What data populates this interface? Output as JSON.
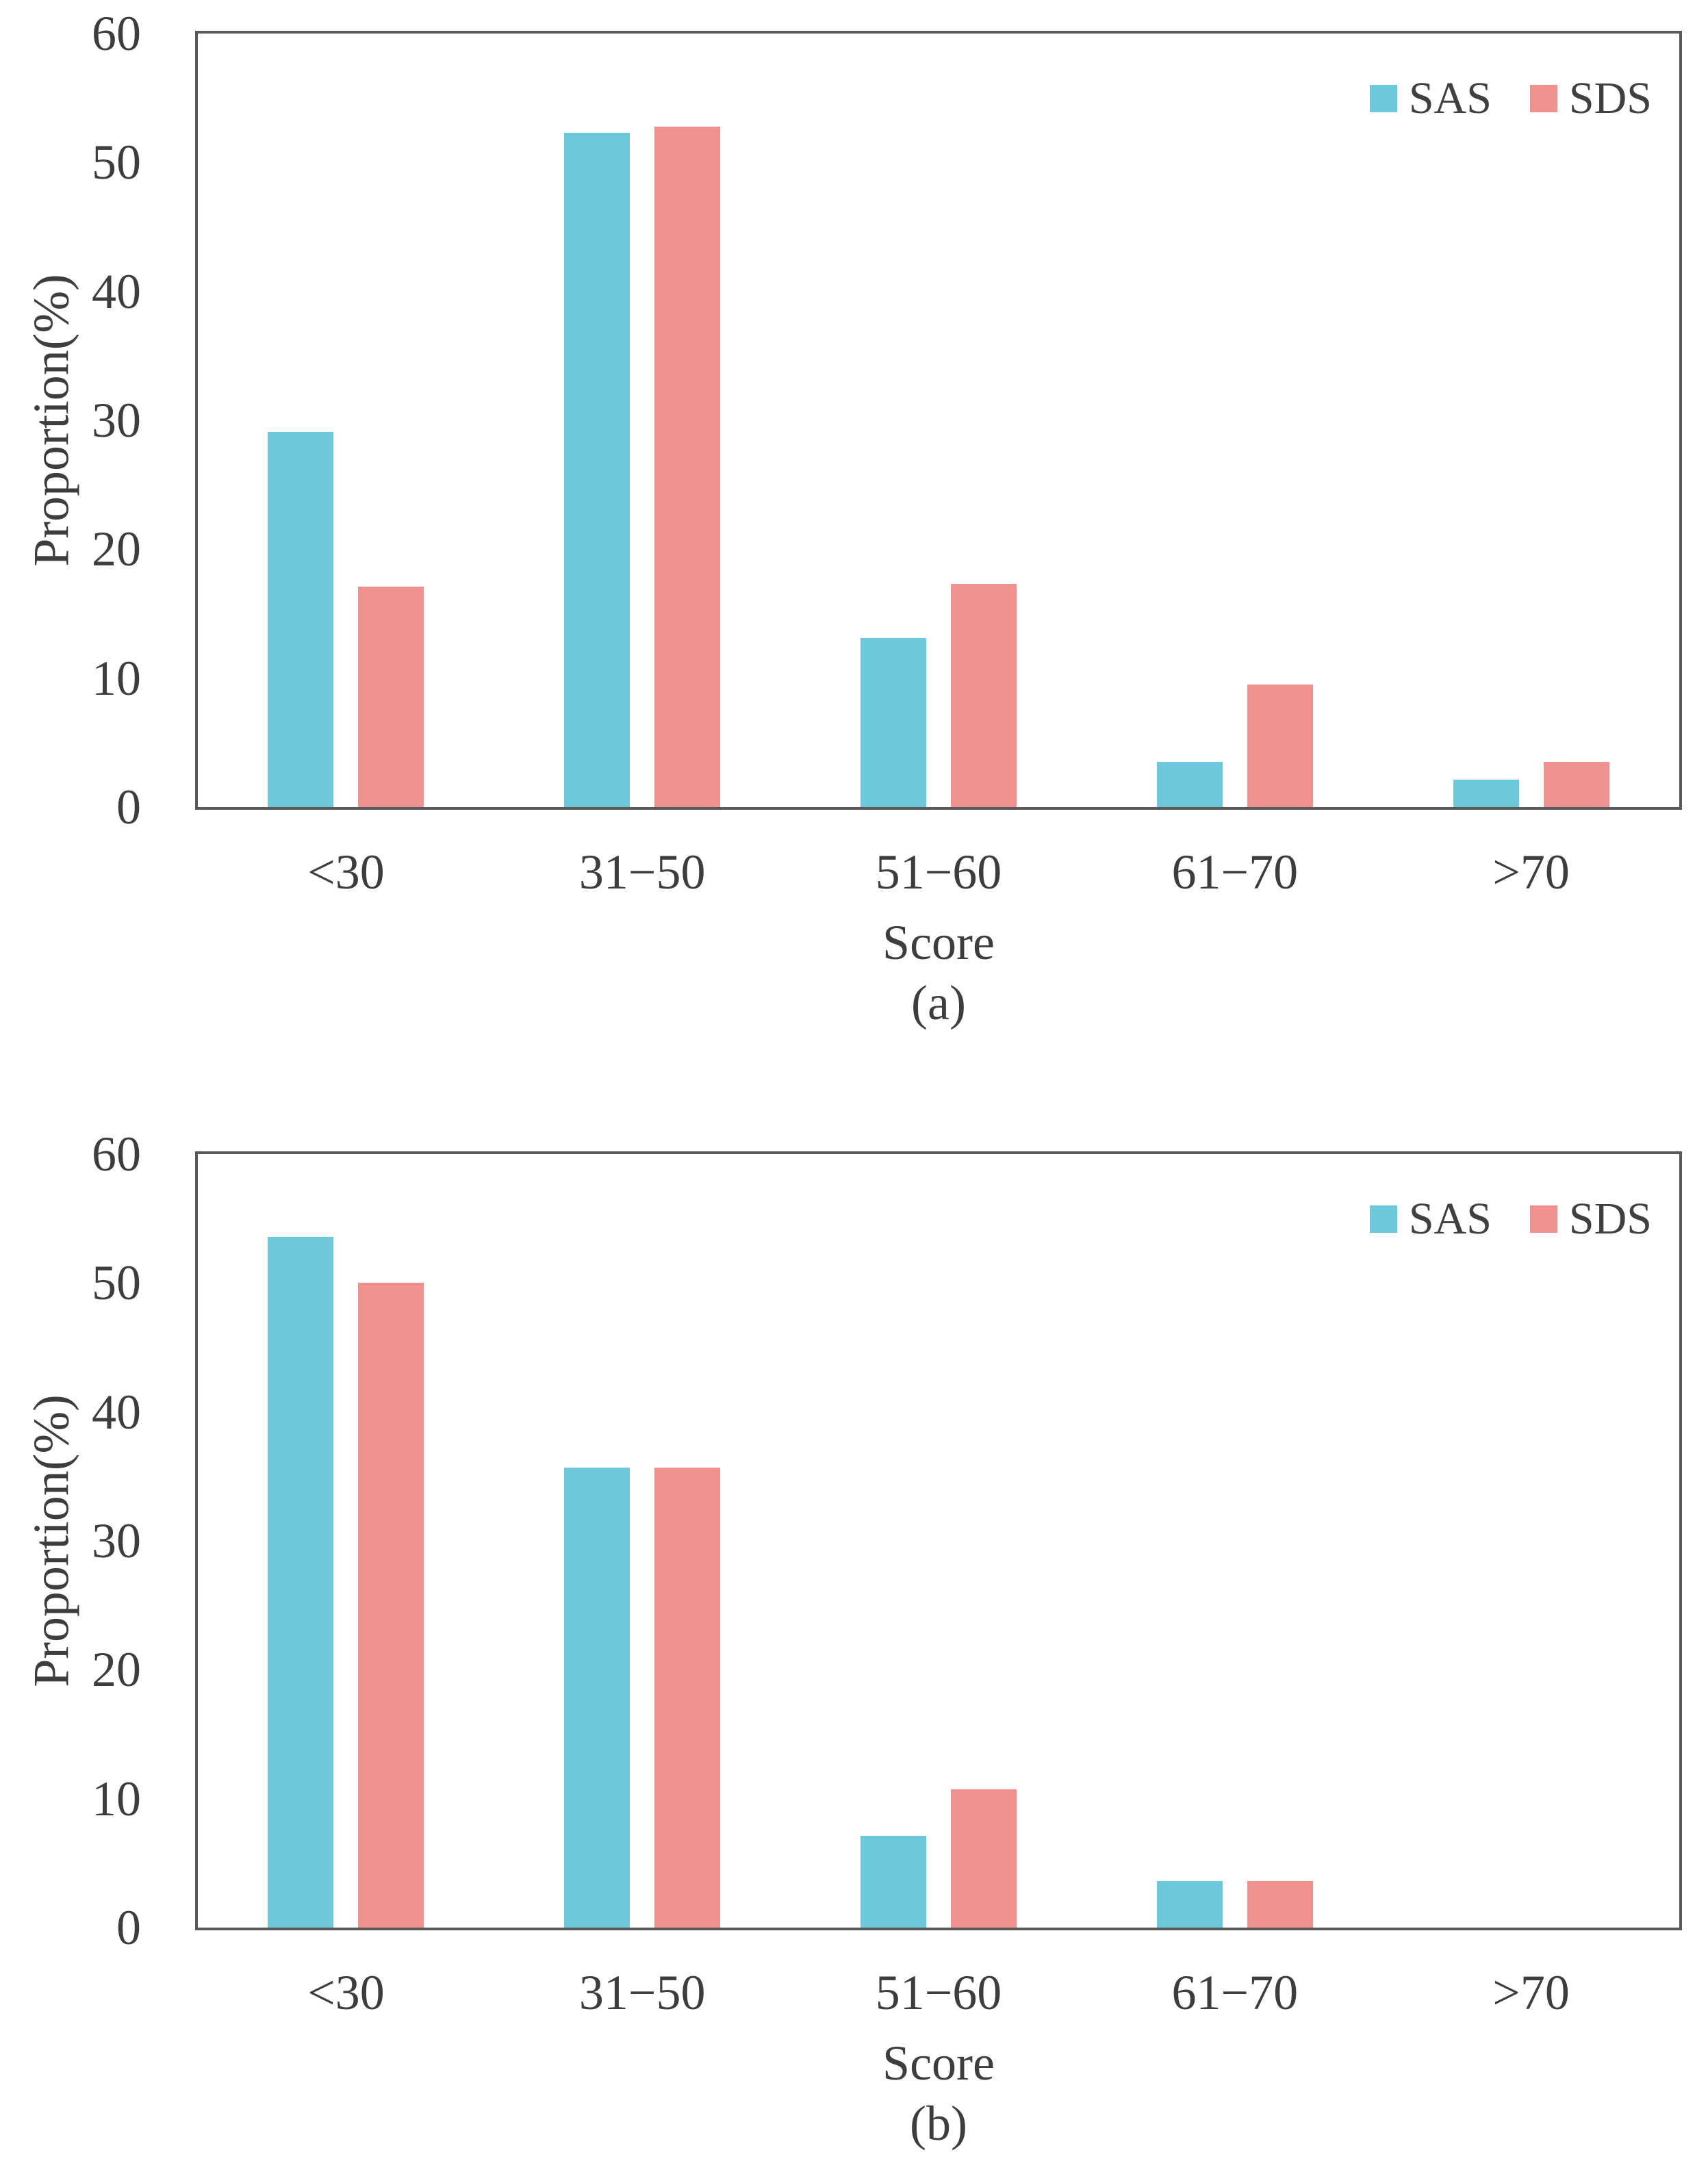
{
  "figure": {
    "y_axis_label": "Proportion(%)",
    "x_axis_label": "Score",
    "y_ticks": [
      0,
      10,
      20,
      30,
      40,
      50,
      60
    ],
    "frame_color": "#595959",
    "text_color": "#3d3d3d",
    "sas_color": "#6EC8DC",
    "sds_color": "#EF928F"
  },
  "chart_data": [
    {
      "type": "bar",
      "panel_label": "(a)",
      "categories": [
        "<30",
        "31−50",
        "51−60",
        "61−70",
        ">70"
      ],
      "series": [
        {
          "name": "SAS",
          "color": "#6EC8DC",
          "values": [
            29.1,
            52.3,
            13.1,
            3.5,
            2.1
          ]
        },
        {
          "name": "SDS",
          "color": "#EF928F",
          "values": [
            17.1,
            52.8,
            17.3,
            9.5,
            3.5
          ]
        }
      ],
      "xlabel": "Score",
      "ylabel": "Proportion(%)",
      "ylim": [
        0,
        60
      ],
      "grid": false,
      "legend_position": "top-right"
    },
    {
      "type": "bar",
      "panel_label": "(b)",
      "categories": [
        "<30",
        "31−50",
        "51−60",
        "61−70",
        ">70"
      ],
      "series": [
        {
          "name": "SAS",
          "color": "#6EC8DC",
          "values": [
            53.6,
            35.7,
            7.1,
            3.6,
            0
          ]
        },
        {
          "name": "SDS",
          "color": "#EF928F",
          "values": [
            50.0,
            35.7,
            10.7,
            3.6,
            0
          ]
        }
      ],
      "xlabel": "Score",
      "ylabel": "Proportion(%)",
      "ylim": [
        0,
        60
      ],
      "grid": false,
      "legend_position": "top-right"
    }
  ]
}
